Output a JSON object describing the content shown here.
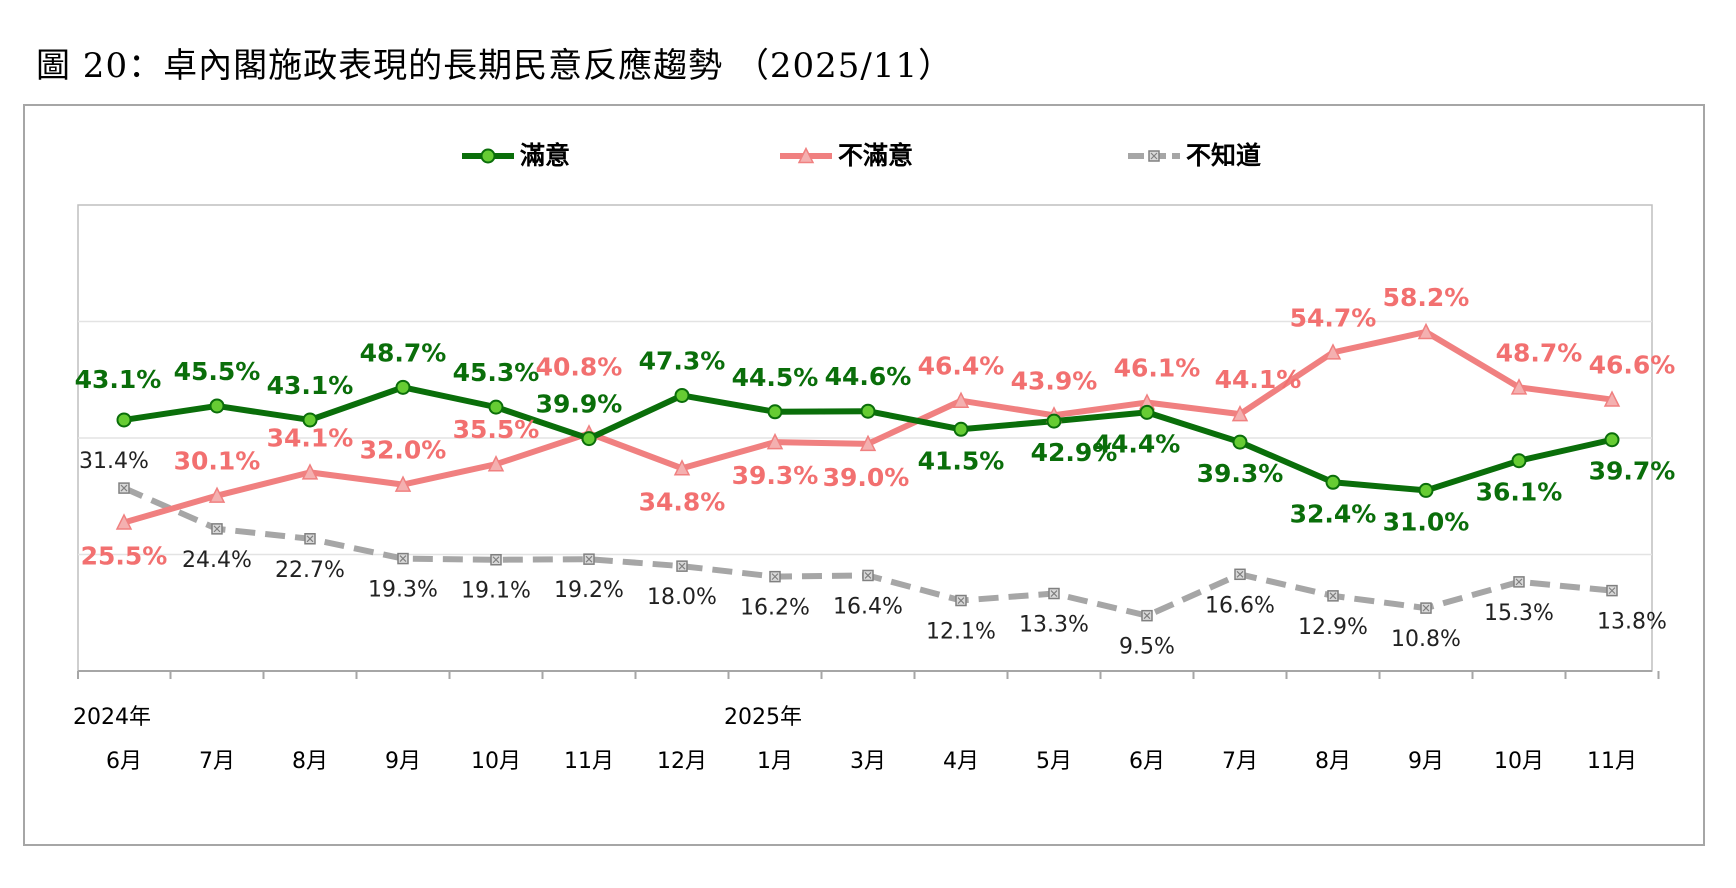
{
  "figure": {
    "title": "圖 20：卓內閣施政表現的長期民意反應趨勢 （2025/11）"
  },
  "chart_data": {
    "type": "line",
    "year_labels": [
      {
        "label": "2024年",
        "category_index": 0
      },
      {
        "label": "2025年",
        "category_index": 7
      }
    ],
    "categories": [
      "6月",
      "7月",
      "8月",
      "9月",
      "10月",
      "11月",
      "12月",
      "1月",
      "3月",
      "4月",
      "5月",
      "6月",
      "7月",
      "8月",
      "9月",
      "10月",
      "11月"
    ],
    "ylim": [
      0,
      80
    ],
    "grid": true,
    "legend_position": "top",
    "series": [
      {
        "name": "滿意",
        "color": "#0a6e0a",
        "marker_color": "#66cc33",
        "marker": "circle",
        "style": "solid",
        "values": [
          43.1,
          45.5,
          43.1,
          48.7,
          45.3,
          39.9,
          47.3,
          44.5,
          44.6,
          41.5,
          42.9,
          44.4,
          39.3,
          32.4,
          31.0,
          36.1,
          39.7
        ],
        "labels": [
          "43.1%",
          "45.5%",
          "43.1%",
          "48.7%",
          "45.3%",
          "39.9%",
          "47.3%",
          "44.5%",
          "44.6%",
          "41.5%",
          "42.9%",
          "44.4%",
          "39.3%",
          "32.4%",
          "31.0%",
          "36.1%",
          "39.7%"
        ]
      },
      {
        "name": "不滿意",
        "color": "#f08080",
        "marker_color": "#f4b0b0",
        "marker": "triangle",
        "style": "solid",
        "values": [
          25.5,
          30.1,
          34.1,
          32.0,
          35.5,
          40.8,
          34.8,
          39.3,
          39.0,
          46.4,
          43.9,
          46.1,
          44.1,
          54.7,
          58.2,
          48.7,
          46.6
        ],
        "labels": [
          "25.5%",
          "30.1%",
          "34.1%",
          "32.0%",
          "35.5%",
          "40.8%",
          "34.8%",
          "39.3%",
          "39.0%",
          "46.4%",
          "43.9%",
          "46.1%",
          "44.1%",
          "54.7%",
          "58.2%",
          "48.7%",
          "46.6%"
        ]
      },
      {
        "name": "不知道",
        "color": "#a6a6a6",
        "marker_color": "#808080",
        "marker": "square-x",
        "style": "dashed",
        "values": [
          31.4,
          24.4,
          22.7,
          19.3,
          19.1,
          19.2,
          18.0,
          16.2,
          16.4,
          12.1,
          13.3,
          9.5,
          16.6,
          12.9,
          10.8,
          15.3,
          13.8
        ],
        "labels": [
          "31.4%",
          "24.4%",
          "22.7%",
          "19.3%",
          "19.1%",
          "19.2%",
          "18.0%",
          "16.2%",
          "16.4%",
          "12.1%",
          "13.3%",
          "9.5%",
          "16.6%",
          "12.9%",
          "10.8%",
          "15.3%",
          "13.8%"
        ]
      }
    ]
  }
}
